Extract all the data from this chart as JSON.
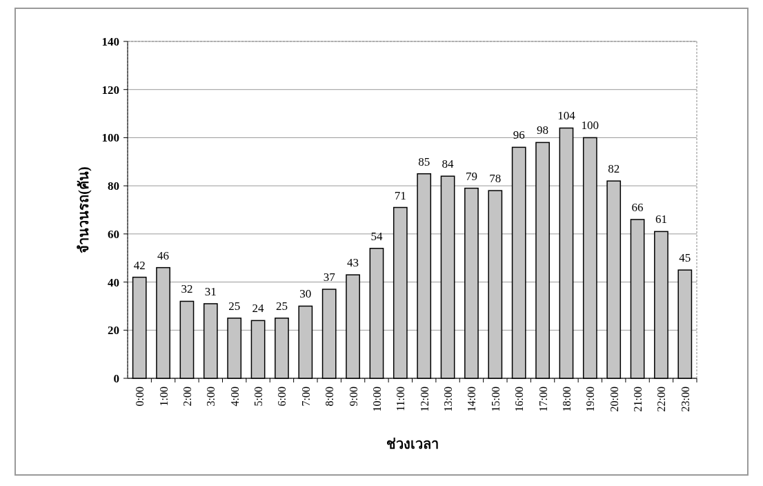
{
  "chart_data": {
    "type": "bar",
    "xlabel": "ช่วงเวลา",
    "ylabel": "จำนวนรถ(คัน)",
    "categories": [
      "0:00",
      "1:00",
      "2:00",
      "3:00",
      "4:00",
      "5:00",
      "6:00",
      "7:00",
      "8:00",
      "9:00",
      "10:00",
      "11:00",
      "12:00",
      "13:00",
      "14:00",
      "15:00",
      "16:00",
      "17:00",
      "18:00",
      "19:00",
      "20:00",
      "21:00",
      "22:00",
      "23:00"
    ],
    "values": [
      42,
      46,
      32,
      31,
      25,
      24,
      25,
      30,
      37,
      43,
      54,
      71,
      85,
      84,
      79,
      78,
      96,
      98,
      104,
      100,
      82,
      66,
      61,
      45
    ],
    "color": "#c4c4c4",
    "ylim": [
      0,
      140
    ],
    "yticks": [
      0,
      20,
      40,
      60,
      80,
      100,
      120,
      140
    ],
    "grid": "y",
    "data_labels": true
  }
}
